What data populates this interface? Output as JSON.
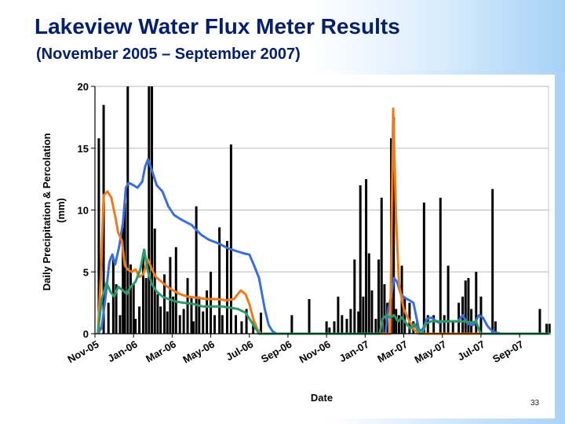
{
  "slide": {
    "title": "Lakeview Water Flux Meter Results",
    "subtitle": "(November 2005 – September 2007)",
    "page_number": "33"
  },
  "colors": {
    "title": "#061f69",
    "precipitation": "#000000",
    "series_blue": "#3a6fd8",
    "series_orange": "#f07a1a",
    "series_green": "#2e9a6a",
    "grid": "#bdbdbd"
  },
  "chart_data": {
    "type": "bar",
    "title": "",
    "xlabel": "Date",
    "ylabel": "Daily Precipitation & Percolation (mm)",
    "ylim": [
      0,
      20
    ],
    "yticks": [
      0,
      5,
      10,
      15,
      20
    ],
    "grid": true,
    "x_tick_labels": [
      "Nov-05",
      "Jan-06",
      "Mar-06",
      "May-06",
      "Jul-06",
      "Sep-06",
      "Nov-06",
      "Jan-07",
      "Mar-07",
      "May-07",
      "Jul-07",
      "Sep-07"
    ],
    "x_start_month_label": "Nov-05",
    "x_span_months": 23.5,
    "precipitation_bars": {
      "color": "#000000",
      "points": [
        [
          0.2,
          15.8
        ],
        [
          0.45,
          18.5
        ],
        [
          0.7,
          2.5
        ],
        [
          0.95,
          6.0
        ],
        [
          1.1,
          4.0
        ],
        [
          1.3,
          1.5
        ],
        [
          1.45,
          8.6
        ],
        [
          1.55,
          10.6
        ],
        [
          1.7,
          20.0
        ],
        [
          1.85,
          5.6
        ],
        [
          2.0,
          4.0
        ],
        [
          2.1,
          1.2
        ],
        [
          2.3,
          2.2
        ],
        [
          2.5,
          6.5
        ],
        [
          2.65,
          4.5
        ],
        [
          2.8,
          20.0
        ],
        [
          2.95,
          20.0
        ],
        [
          3.1,
          8.5
        ],
        [
          3.25,
          3.2
        ],
        [
          3.4,
          2.2
        ],
        [
          3.6,
          4.8
        ],
        [
          3.75,
          1.8
        ],
        [
          3.9,
          6.2
        ],
        [
          4.05,
          3.0
        ],
        [
          4.2,
          7.0
        ],
        [
          4.4,
          1.5
        ],
        [
          4.6,
          2.0
        ],
        [
          4.8,
          4.5
        ],
        [
          5.0,
          3.0
        ],
        [
          5.1,
          1.0
        ],
        [
          5.25,
          10.3
        ],
        [
          5.4,
          3.0
        ],
        [
          5.6,
          1.8
        ],
        [
          5.8,
          3.5
        ],
        [
          6.0,
          5.0
        ],
        [
          6.2,
          1.5
        ],
        [
          6.45,
          8.6
        ],
        [
          6.6,
          1.5
        ],
        [
          6.85,
          7.5
        ],
        [
          7.05,
          15.3
        ],
        [
          7.3,
          1.5
        ],
        [
          7.6,
          1.0
        ],
        [
          7.85,
          2.0
        ],
        [
          8.2,
          1.0
        ],
        [
          8.6,
          1.7
        ],
        [
          10.2,
          1.5
        ],
        [
          11.1,
          2.8
        ],
        [
          12.0,
          1.0
        ],
        [
          12.15,
          0.5
        ],
        [
          12.4,
          1.0
        ],
        [
          12.6,
          3.0
        ],
        [
          12.8,
          1.5
        ],
        [
          13.05,
          1.2
        ],
        [
          13.25,
          2.0
        ],
        [
          13.45,
          6.0
        ],
        [
          13.65,
          1.8
        ],
        [
          13.75,
          12.0
        ],
        [
          13.9,
          3.0
        ],
        [
          14.05,
          12.5
        ],
        [
          14.2,
          6.5
        ],
        [
          14.35,
          3.5
        ],
        [
          14.55,
          1.2
        ],
        [
          14.7,
          6.0
        ],
        [
          14.85,
          11.0
        ],
        [
          15.0,
          4.0
        ],
        [
          15.15,
          2.5
        ],
        [
          15.35,
          15.8
        ],
        [
          15.48,
          17.5
        ],
        [
          15.6,
          2.0
        ],
        [
          15.75,
          1.5
        ],
        [
          15.9,
          5.5
        ],
        [
          16.05,
          3.0
        ],
        [
          16.3,
          2.5
        ],
        [
          16.5,
          1.0
        ],
        [
          16.7,
          1.0
        ],
        [
          17.05,
          10.6
        ],
        [
          17.25,
          1.5
        ],
        [
          17.55,
          1.5
        ],
        [
          17.9,
          11.0
        ],
        [
          18.1,
          1.5
        ],
        [
          18.3,
          5.5
        ],
        [
          18.55,
          1.0
        ],
        [
          18.85,
          2.5
        ],
        [
          19.05,
          3.0
        ],
        [
          19.2,
          4.3
        ],
        [
          19.35,
          4.5
        ],
        [
          19.5,
          2.0
        ],
        [
          19.75,
          5.0
        ],
        [
          20.0,
          3.0
        ],
        [
          20.6,
          11.7
        ],
        [
          20.75,
          1.0
        ],
        [
          23.05,
          2.0
        ],
        [
          23.4,
          0.8
        ],
        [
          23.55,
          0.8
        ]
      ]
    },
    "series": [
      {
        "color": "#3a6fd8",
        "points": [
          [
            0.15,
            0
          ],
          [
            0.35,
            0.5
          ],
          [
            0.55,
            3.0
          ],
          [
            0.75,
            5.8
          ],
          [
            0.9,
            6.4
          ],
          [
            1.05,
            5.6
          ],
          [
            1.25,
            7.0
          ],
          [
            1.45,
            9.0
          ],
          [
            1.6,
            11.8
          ],
          [
            1.75,
            12.2
          ],
          [
            2.0,
            12.0
          ],
          [
            2.2,
            11.8
          ],
          [
            2.45,
            12.3
          ],
          [
            2.6,
            13.5
          ],
          [
            2.75,
            14.1
          ],
          [
            2.95,
            13.2
          ],
          [
            3.2,
            12.0
          ],
          [
            3.5,
            11.5
          ],
          [
            3.8,
            10.3
          ],
          [
            4.1,
            9.6
          ],
          [
            4.5,
            9.2
          ],
          [
            5.0,
            8.8
          ],
          [
            5.5,
            8.0
          ],
          [
            5.9,
            7.6
          ],
          [
            6.4,
            7.3
          ],
          [
            6.9,
            6.9
          ],
          [
            7.3,
            6.7
          ],
          [
            7.7,
            6.5
          ],
          [
            8.0,
            6.4
          ],
          [
            8.25,
            5.5
          ],
          [
            8.5,
            4.5
          ],
          [
            8.8,
            2.0
          ],
          [
            9.0,
            0.7
          ],
          [
            9.2,
            0.2
          ],
          [
            9.4,
            0
          ],
          [
            15.05,
            0
          ],
          [
            15.2,
            2.0
          ],
          [
            15.35,
            3.0
          ],
          [
            15.5,
            4.5
          ],
          [
            15.65,
            4.2
          ],
          [
            15.85,
            3.2
          ],
          [
            16.05,
            2.9
          ],
          [
            16.3,
            2.7
          ],
          [
            16.5,
            2.5
          ],
          [
            16.7,
            1.0
          ],
          [
            16.8,
            0.2
          ],
          [
            17.0,
            0.4
          ],
          [
            17.2,
            1.2
          ],
          [
            17.45,
            1.3
          ],
          [
            17.6,
            1.1
          ],
          [
            17.8,
            0.9
          ],
          [
            18.1,
            1.0
          ],
          [
            18.5,
            1.0
          ],
          [
            18.8,
            1.0
          ],
          [
            19.05,
            1.5
          ],
          [
            19.3,
            0.8
          ],
          [
            19.6,
            0.7
          ],
          [
            19.9,
            1.5
          ],
          [
            20.1,
            1.3
          ],
          [
            20.35,
            0.6
          ],
          [
            20.6,
            0.2
          ],
          [
            21.0,
            0
          ],
          [
            23.6,
            0
          ]
        ]
      },
      {
        "color": "#f07a1a",
        "points": [
          [
            0.15,
            0
          ],
          [
            0.3,
            4.5
          ],
          [
            0.45,
            11.2
          ],
          [
            0.65,
            11.5
          ],
          [
            0.85,
            11.0
          ],
          [
            1.05,
            9.5
          ],
          [
            1.2,
            8.2
          ],
          [
            1.4,
            7.5
          ],
          [
            1.55,
            5.5
          ],
          [
            1.7,
            5.2
          ],
          [
            1.9,
            5.0
          ],
          [
            2.1,
            5.2
          ],
          [
            2.3,
            4.6
          ],
          [
            2.5,
            4.8
          ],
          [
            2.75,
            6.0
          ],
          [
            2.95,
            5.2
          ],
          [
            3.15,
            4.6
          ],
          [
            3.45,
            4.2
          ],
          [
            3.75,
            3.8
          ],
          [
            4.05,
            3.5
          ],
          [
            4.4,
            3.2
          ],
          [
            4.8,
            3.0
          ],
          [
            5.3,
            2.9
          ],
          [
            5.8,
            2.8
          ],
          [
            6.3,
            2.8
          ],
          [
            6.8,
            2.7
          ],
          [
            7.2,
            2.8
          ],
          [
            7.55,
            3.5
          ],
          [
            7.8,
            3.2
          ],
          [
            8.0,
            2.4
          ],
          [
            8.2,
            1.2
          ],
          [
            8.4,
            0.4
          ],
          [
            8.6,
            0
          ],
          [
            15.3,
            0
          ],
          [
            15.45,
            18.2
          ],
          [
            15.6,
            9.5
          ],
          [
            15.75,
            4.0
          ],
          [
            16.0,
            2.0
          ],
          [
            16.3,
            1.0
          ],
          [
            16.55,
            0.3
          ],
          [
            16.8,
            0
          ],
          [
            23.6,
            0
          ]
        ]
      },
      {
        "color": "#2e9a6a",
        "points": [
          [
            0.15,
            0
          ],
          [
            0.35,
            2.8
          ],
          [
            0.6,
            4.1
          ],
          [
            0.8,
            3.4
          ],
          [
            1.0,
            3.0
          ],
          [
            1.2,
            3.8
          ],
          [
            1.45,
            3.5
          ],
          [
            1.65,
            3.2
          ],
          [
            1.85,
            3.8
          ],
          [
            2.1,
            4.2
          ],
          [
            2.35,
            5.2
          ],
          [
            2.55,
            6.8
          ],
          [
            2.75,
            5.0
          ],
          [
            2.95,
            4.0
          ],
          [
            3.2,
            3.4
          ],
          [
            3.5,
            3.0
          ],
          [
            3.8,
            2.8
          ],
          [
            4.2,
            2.6
          ],
          [
            4.6,
            2.5
          ],
          [
            5.1,
            2.4
          ],
          [
            5.6,
            2.2
          ],
          [
            6.1,
            2.2
          ],
          [
            6.6,
            2.2
          ],
          [
            7.0,
            2.1
          ],
          [
            7.4,
            2.0
          ],
          [
            7.8,
            1.7
          ],
          [
            8.05,
            1.1
          ],
          [
            8.3,
            0.5
          ],
          [
            8.5,
            0
          ],
          [
            14.75,
            0
          ],
          [
            14.9,
            1.2
          ],
          [
            15.1,
            1.5
          ],
          [
            15.3,
            1.3
          ],
          [
            15.5,
            1.5
          ],
          [
            15.7,
            1.0
          ],
          [
            15.9,
            1.3
          ],
          [
            16.15,
            0.8
          ],
          [
            16.35,
            0.4
          ],
          [
            16.55,
            0.8
          ],
          [
            16.75,
            0.2
          ],
          [
            16.95,
            0
          ],
          [
            17.15,
            0.8
          ],
          [
            17.4,
            1.0
          ],
          [
            17.7,
            1.0
          ],
          [
            18.0,
            1.0
          ],
          [
            18.4,
            1.0
          ],
          [
            18.8,
            1.0
          ],
          [
            19.2,
            1.0
          ],
          [
            19.5,
            0.9
          ],
          [
            19.75,
            1.0
          ],
          [
            19.9,
            0.3
          ],
          [
            20.0,
            0
          ],
          [
            23.6,
            0
          ]
        ]
      }
    ]
  }
}
